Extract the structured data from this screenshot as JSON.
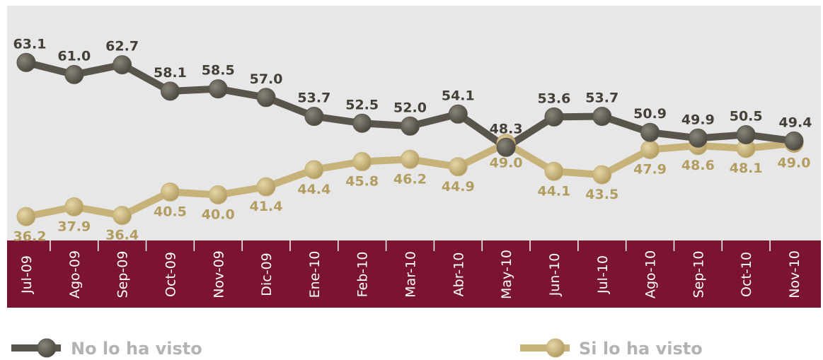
{
  "chart_data": {
    "type": "line",
    "categories": [
      "Jul-09",
      "Ago-09",
      "Sep-09",
      "Oct-09",
      "Nov-09",
      "Dic-09",
      "Ene-10",
      "Feb-10",
      "Mar-10",
      "Abr-10",
      "May-10",
      "Jun-10",
      "Jul-10",
      "Ago-10",
      "Sep-10",
      "Oct-10",
      "Nov-10"
    ],
    "series": [
      {
        "name": "No lo ha visto",
        "color": "#5a554c",
        "values": [
          63.1,
          61.0,
          62.7,
          58.1,
          58.5,
          57.0,
          53.7,
          52.5,
          52.0,
          54.1,
          48.3,
          53.6,
          53.7,
          50.9,
          49.9,
          50.5,
          49.4
        ],
        "labels": [
          "63.1",
          "61.0",
          "62.7",
          "58.1",
          "58.5",
          "57.0",
          "53.7",
          "52.5",
          "52.0",
          "54.1",
          "48.3",
          "53.6",
          "53.7",
          "50.9",
          "49.9",
          "50.5",
          "49.4"
        ]
      },
      {
        "name": "Si lo ha visto",
        "color": "#c7b27a",
        "values": [
          36.2,
          37.9,
          36.4,
          40.5,
          40.0,
          41.4,
          44.4,
          45.8,
          46.2,
          44.9,
          49.0,
          44.1,
          43.5,
          47.9,
          48.6,
          48.1,
          49.0
        ],
        "labels": [
          "36.2",
          "37.9",
          "36.4",
          "40.5",
          "40.0",
          "41.4",
          "44.4",
          "45.8",
          "46.2",
          "44.9",
          "49.0",
          "44.1",
          "43.5",
          "47.9",
          "48.6",
          "48.1",
          "49.0"
        ]
      }
    ],
    "colors": {
      "plot_background": "#e8e7e7",
      "axis_band": "#7a1430",
      "tick_text": "#ffffff",
      "legend_text": "#b3b3b3",
      "label_dark": "#444038",
      "label_light": "#b19d5f"
    },
    "legend_position": "bottom",
    "grid": false
  }
}
